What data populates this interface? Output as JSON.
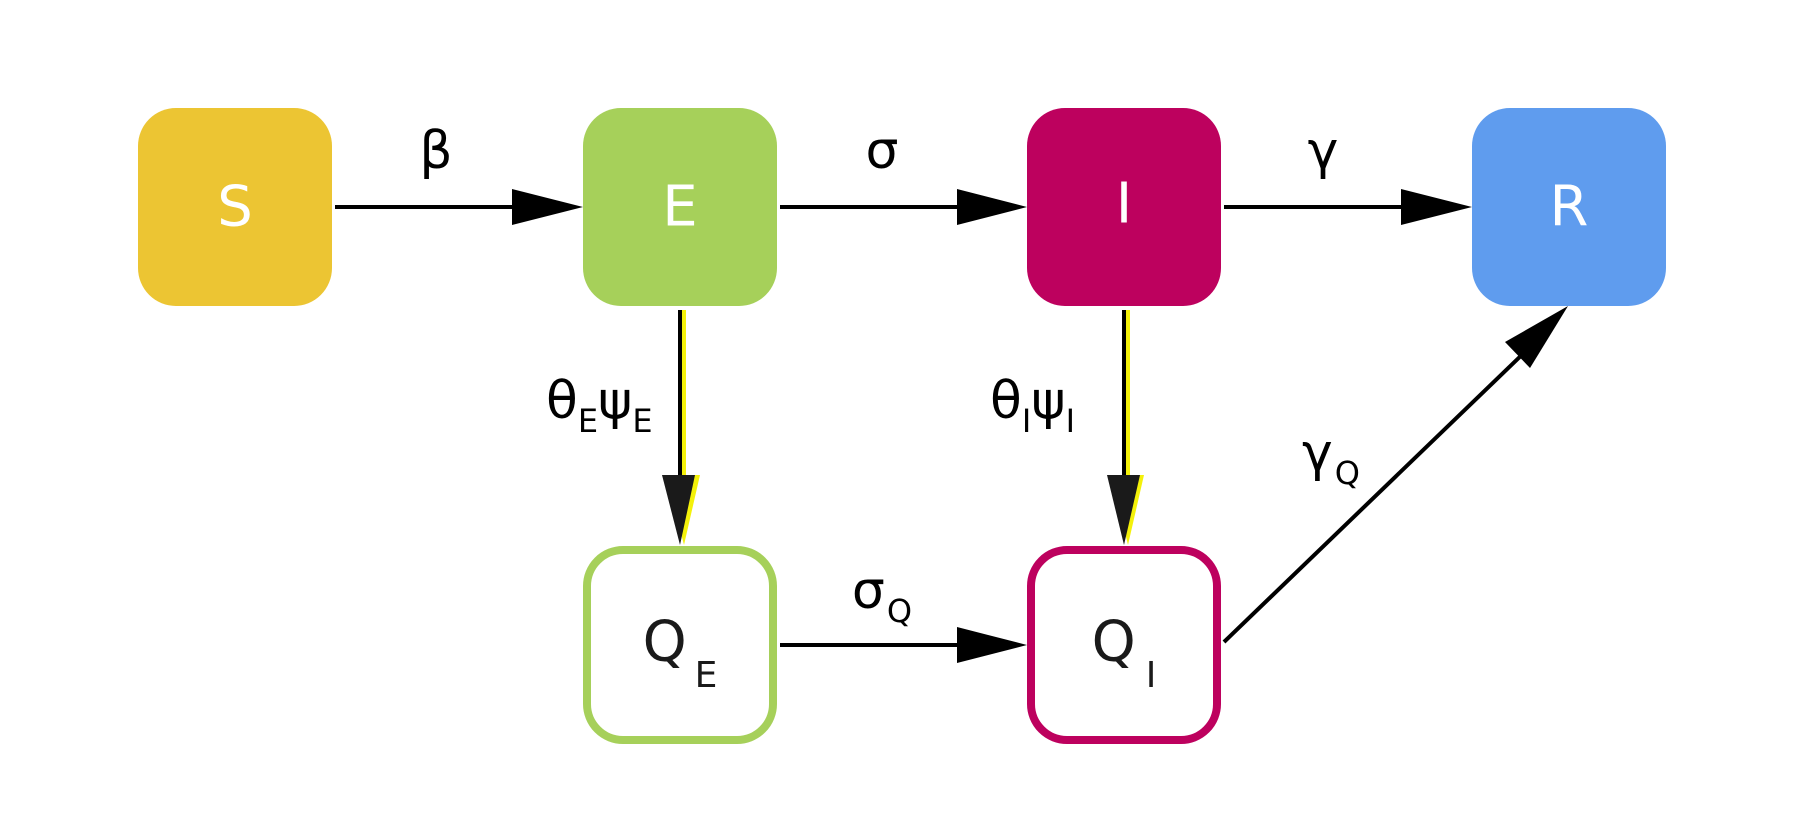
{
  "diagram": {
    "type": "compartment-flow",
    "nodes": {
      "S": {
        "label": "S",
        "subscript": "",
        "fill": "#ECC533",
        "stroke": "",
        "text_color": "#FFFFFF"
      },
      "E": {
        "label": "E",
        "subscript": "",
        "fill": "#A6D05A",
        "stroke": "",
        "text_color": "#FFFFFF"
      },
      "I": {
        "label": "I",
        "subscript": "",
        "fill": "#BD015E",
        "stroke": "",
        "text_color": "#FFFFFF"
      },
      "R": {
        "label": "R",
        "subscript": "",
        "fill": "#5F9CEE",
        "stroke": "",
        "text_color": "#FFFFFF"
      },
      "QE": {
        "label": "Q",
        "subscript": "E",
        "fill": "#FFFFFF",
        "stroke": "#A6D05A",
        "text_color": "#1A1A1A"
      },
      "QI": {
        "label": "Q",
        "subscript": "I",
        "fill": "#FFFFFF",
        "stroke": "#BD015E",
        "text_color": "#1A1A1A"
      }
    },
    "edges": {
      "s_to_e": {
        "from": "S",
        "to": "E",
        "label": "β",
        "label_sub": ""
      },
      "e_to_i": {
        "from": "E",
        "to": "I",
        "label": "σ",
        "label_sub": ""
      },
      "i_to_r": {
        "from": "I",
        "to": "R",
        "label": "γ",
        "label_sub": ""
      },
      "e_to_qe": {
        "from": "E",
        "to": "QE",
        "label1": "θ",
        "sub1": "E",
        "label2": "ψ",
        "sub2": "E"
      },
      "i_to_qi": {
        "from": "I",
        "to": "QI",
        "label1": "θ",
        "sub1": "I",
        "label2": "ψ",
        "sub2": "I"
      },
      "qe_to_qi": {
        "from": "QE",
        "to": "QI",
        "label": "σ",
        "label_sub": "Q"
      },
      "qi_to_r": {
        "from": "QI",
        "to": "R",
        "label": "γ",
        "label_sub": "Q"
      }
    },
    "colors": {
      "arrow": "#000000",
      "highlight": "#F4F10A"
    }
  }
}
